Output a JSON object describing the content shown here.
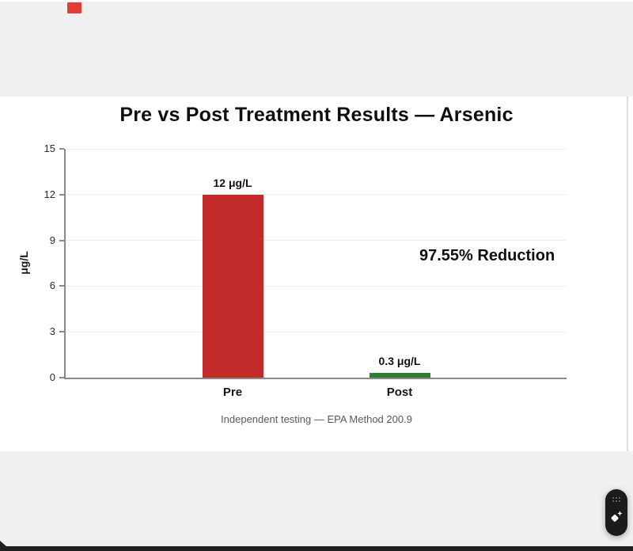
{
  "header": {
    "badge_color": "#e23c33"
  },
  "chart_data": {
    "type": "bar",
    "title": "Pre vs Post Treatment Results — Arsenic",
    "categories": [
      "Pre",
      "Post"
    ],
    "values": [
      12,
      0.3
    ],
    "value_labels": [
      "12 μg/L",
      "0.3 μg/L"
    ],
    "bar_colors": [
      "#c22a2a",
      "#2e7d32"
    ],
    "ylabel": "μg/L",
    "xlabel": "",
    "ylim": [
      0,
      15
    ],
    "yticks": [
      0,
      3,
      6,
      9,
      12,
      15
    ],
    "grid": true,
    "legend_position": "none",
    "annotation": "97.55% Reduction",
    "caption": "Independent testing — EPA Method 200.9"
  },
  "widget": {
    "icons": [
      "drag-dots",
      "sparkles"
    ]
  },
  "colors": {
    "band_gray": "#f0f0f0",
    "surface": "#ffffff",
    "axis": "#8a8a8a",
    "gridline": "#ededed",
    "title_text": "#0f0f0f",
    "caption_text": "#595959",
    "pre_bar": "#c22a2a",
    "post_bar": "#2e7d32",
    "widget_bg": "#1b1b1d",
    "bottom_strip": "#202020"
  }
}
